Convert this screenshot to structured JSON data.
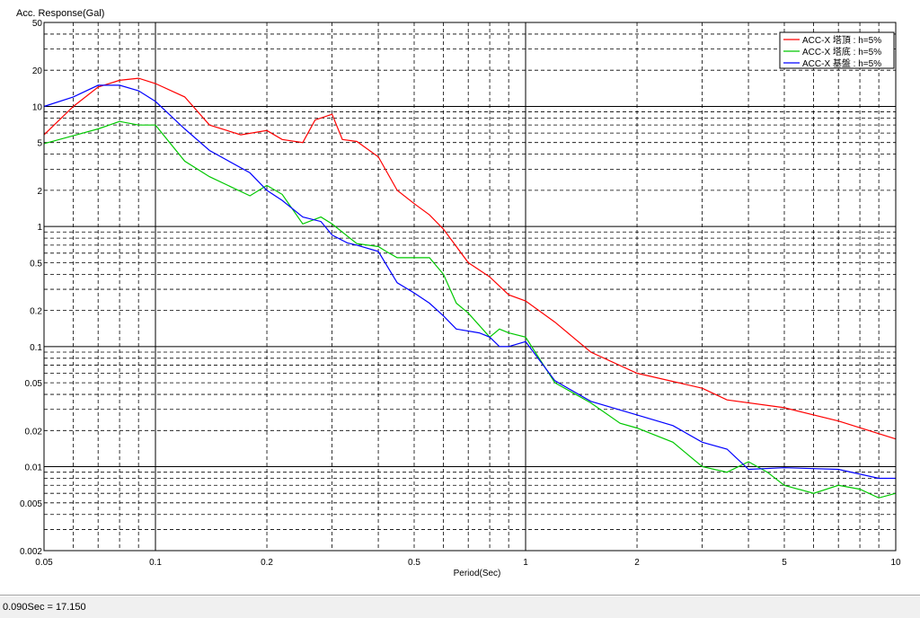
{
  "status_bar": {
    "readout": "0.090Sec = 17.150"
  },
  "chart_data": {
    "type": "line",
    "x_scale": "log",
    "y_scale": "log",
    "xlim": [
      0.05,
      10
    ],
    "ylim": [
      0.002,
      50
    ],
    "ylabel": "Acc. Response(Gal)",
    "xlabel": "Period(Sec)",
    "grid": true,
    "legend_position": "top-right",
    "x_ticks": [
      {
        "v": 0.05,
        "label": "0.05"
      },
      {
        "v": 0.1,
        "label": "0.1"
      },
      {
        "v": 0.2,
        "label": "0.2"
      },
      {
        "v": 0.5,
        "label": "0.5"
      },
      {
        "v": 1,
        "label": "1"
      },
      {
        "v": 2,
        "label": "2"
      },
      {
        "v": 5,
        "label": "5"
      },
      {
        "v": 10,
        "label": "10"
      }
    ],
    "y_ticks": [
      {
        "v": 0.002,
        "label": "0.002"
      },
      {
        "v": 0.005,
        "label": "0.005"
      },
      {
        "v": 0.01,
        "label": "0.01"
      },
      {
        "v": 0.02,
        "label": "0.02"
      },
      {
        "v": 0.05,
        "label": "0.05"
      },
      {
        "v": 0.1,
        "label": "0.1"
      },
      {
        "v": 0.2,
        "label": "0.2"
      },
      {
        "v": 0.5,
        "label": "0.5"
      },
      {
        "v": 1,
        "label": "1"
      },
      {
        "v": 2,
        "label": "2"
      },
      {
        "v": 5,
        "label": "5"
      },
      {
        "v": 10,
        "label": "10"
      },
      {
        "v": 20,
        "label": "20"
      },
      {
        "v": 50,
        "label": "50"
      }
    ],
    "series": [
      {
        "name": "ACC-X 塔頂 : h=5%",
        "color": "#ff0000",
        "points": [
          [
            0.05,
            5.8
          ],
          [
            0.06,
            10
          ],
          [
            0.07,
            14.5
          ],
          [
            0.08,
            16.5
          ],
          [
            0.09,
            17.15
          ],
          [
            0.1,
            15.5
          ],
          [
            0.12,
            12
          ],
          [
            0.14,
            7
          ],
          [
            0.17,
            5.8
          ],
          [
            0.2,
            6.3
          ],
          [
            0.22,
            5.3
          ],
          [
            0.25,
            5
          ],
          [
            0.27,
            7.7
          ],
          [
            0.3,
            8.6
          ],
          [
            0.32,
            5.3
          ],
          [
            0.35,
            5.1
          ],
          [
            0.4,
            3.8
          ],
          [
            0.45,
            2
          ],
          [
            0.5,
            1.55
          ],
          [
            0.55,
            1.25
          ],
          [
            0.6,
            0.95
          ],
          [
            0.7,
            0.5
          ],
          [
            0.8,
            0.38
          ],
          [
            0.9,
            0.27
          ],
          [
            1,
            0.24
          ],
          [
            1.2,
            0.16
          ],
          [
            1.5,
            0.09
          ],
          [
            2,
            0.06
          ],
          [
            3,
            0.045
          ],
          [
            3.5,
            0.036
          ],
          [
            5,
            0.031
          ],
          [
            7,
            0.024
          ],
          [
            10,
            0.017
          ]
        ]
      },
      {
        "name": "ACC-X 塔底 : h=5%",
        "color": "#00c800",
        "points": [
          [
            0.05,
            4.9
          ],
          [
            0.06,
            5.7
          ],
          [
            0.07,
            6.5
          ],
          [
            0.08,
            7.5
          ],
          [
            0.09,
            7
          ],
          [
            0.1,
            7
          ],
          [
            0.12,
            3.5
          ],
          [
            0.14,
            2.6
          ],
          [
            0.18,
            1.8
          ],
          [
            0.2,
            2.2
          ],
          [
            0.22,
            1.85
          ],
          [
            0.25,
            1.05
          ],
          [
            0.28,
            1.2
          ],
          [
            0.3,
            1.05
          ],
          [
            0.35,
            0.72
          ],
          [
            0.4,
            0.68
          ],
          [
            0.42,
            0.62
          ],
          [
            0.45,
            0.55
          ],
          [
            0.5,
            0.55
          ],
          [
            0.55,
            0.55
          ],
          [
            0.6,
            0.4
          ],
          [
            0.65,
            0.23
          ],
          [
            0.7,
            0.19
          ],
          [
            0.8,
            0.12
          ],
          [
            0.85,
            0.14
          ],
          [
            0.9,
            0.13
          ],
          [
            1,
            0.12
          ],
          [
            1.2,
            0.05
          ],
          [
            1.5,
            0.034
          ],
          [
            1.8,
            0.023
          ],
          [
            2,
            0.021
          ],
          [
            2.5,
            0.016
          ],
          [
            3,
            0.01
          ],
          [
            3.5,
            0.009
          ],
          [
            4,
            0.011
          ],
          [
            4.5,
            0.009
          ],
          [
            5,
            0.007
          ],
          [
            6,
            0.006
          ],
          [
            7,
            0.007
          ],
          [
            8,
            0.0065
          ],
          [
            9,
            0.0055
          ],
          [
            10,
            0.006
          ]
        ]
      },
      {
        "name": "ACC-X 基盤 : h=5%",
        "color": "#0000ff",
        "points": [
          [
            0.05,
            10
          ],
          [
            0.06,
            12
          ],
          [
            0.07,
            15
          ],
          [
            0.08,
            15
          ],
          [
            0.09,
            13.5
          ],
          [
            0.1,
            11
          ],
          [
            0.12,
            6.5
          ],
          [
            0.14,
            4.3
          ],
          [
            0.18,
            2.8
          ],
          [
            0.2,
            2
          ],
          [
            0.22,
            1.65
          ],
          [
            0.25,
            1.2
          ],
          [
            0.28,
            1.1
          ],
          [
            0.3,
            0.85
          ],
          [
            0.33,
            0.73
          ],
          [
            0.35,
            0.7
          ],
          [
            0.4,
            0.62
          ],
          [
            0.45,
            0.34
          ],
          [
            0.5,
            0.28
          ],
          [
            0.55,
            0.23
          ],
          [
            0.6,
            0.18
          ],
          [
            0.65,
            0.14
          ],
          [
            0.75,
            0.13
          ],
          [
            0.8,
            0.12
          ],
          [
            0.85,
            0.1
          ],
          [
            0.9,
            0.1
          ],
          [
            1,
            0.11
          ],
          [
            1.2,
            0.052
          ],
          [
            1.5,
            0.035
          ],
          [
            2,
            0.027
          ],
          [
            2.5,
            0.022
          ],
          [
            3,
            0.016
          ],
          [
            3.5,
            0.014
          ],
          [
            4,
            0.0095
          ],
          [
            5,
            0.0098
          ],
          [
            7,
            0.0095
          ],
          [
            9,
            0.008
          ],
          [
            10,
            0.008
          ]
        ]
      }
    ]
  }
}
